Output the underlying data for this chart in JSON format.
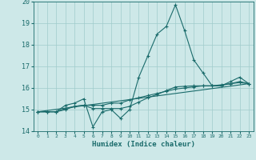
{
  "background_color": "#cde8e8",
  "grid_color": "#a0cccc",
  "line_color": "#1a6b6b",
  "xlim": [
    -0.5,
    23.5
  ],
  "ylim": [
    14,
    20
  ],
  "xlabel": "Humidex (Indice chaleur)",
  "yticks": [
    14,
    15,
    16,
    17,
    18,
    19,
    20
  ],
  "xticks": [
    0,
    1,
    2,
    3,
    4,
    5,
    6,
    7,
    8,
    9,
    10,
    11,
    12,
    13,
    14,
    15,
    16,
    17,
    18,
    19,
    20,
    21,
    22,
    23
  ],
  "series": [
    {
      "x": [
        0,
        1,
        2,
        3,
        4,
        5,
        6,
        7,
        8,
        9,
        10,
        11,
        12,
        13,
        14,
        15,
        16,
        17,
        18,
        19,
        20,
        21,
        22,
        23
      ],
      "y": [
        14.9,
        14.9,
        14.9,
        15.2,
        15.3,
        15.5,
        14.2,
        14.9,
        15.0,
        14.6,
        15.0,
        16.5,
        17.5,
        18.5,
        18.85,
        19.85,
        18.65,
        17.3,
        16.7,
        16.1,
        16.1,
        16.3,
        16.5,
        16.2
      ],
      "marker": true
    },
    {
      "x": [
        0,
        1,
        2,
        3,
        4,
        5,
        6,
        7,
        8,
        9,
        10,
        11,
        12,
        13,
        14,
        15,
        16,
        17,
        18,
        19,
        20,
        21,
        22,
        23
      ],
      "y": [
        14.9,
        14.9,
        14.9,
        15.0,
        15.15,
        15.2,
        15.2,
        15.2,
        15.3,
        15.3,
        15.45,
        15.55,
        15.65,
        15.75,
        15.85,
        15.95,
        16.0,
        16.05,
        16.1,
        16.1,
        16.15,
        16.2,
        16.25,
        16.2
      ],
      "marker": true
    },
    {
      "x": [
        0,
        1,
        2,
        3,
        4,
        5,
        6,
        7,
        8,
        9,
        10,
        11,
        12,
        13,
        14,
        15,
        16,
        17,
        18,
        19,
        20,
        21,
        22,
        23
      ],
      "y": [
        14.9,
        14.9,
        14.9,
        15.05,
        15.15,
        15.2,
        15.05,
        15.05,
        15.05,
        15.05,
        15.15,
        15.35,
        15.55,
        15.7,
        15.88,
        16.05,
        16.08,
        16.1,
        16.1,
        16.1,
        16.12,
        16.2,
        16.3,
        16.2
      ],
      "marker": true
    },
    {
      "x": [
        0,
        23
      ],
      "y": [
        14.9,
        16.2
      ],
      "marker": false
    }
  ]
}
